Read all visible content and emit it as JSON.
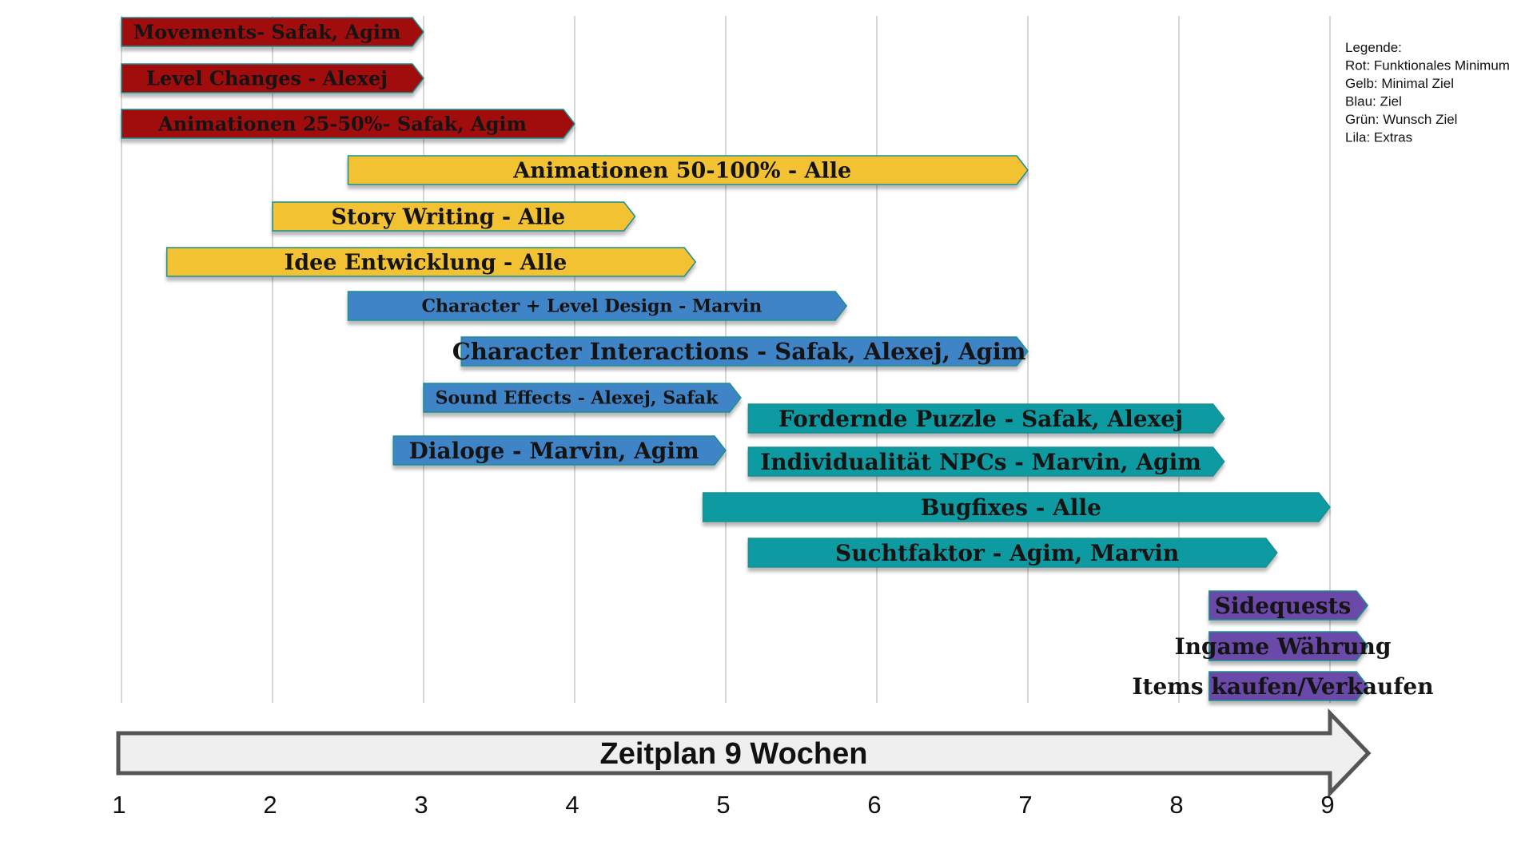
{
  "chart_data": {
    "type": "gantt",
    "x_axis_title": "Zeitplan 9 Wochen",
    "x_ticks": [
      "1",
      "2",
      "3",
      "4",
      "5",
      "6",
      "7",
      "8",
      "9"
    ],
    "xlim": [
      1,
      9.25
    ],
    "legend": {
      "title": "Legende:",
      "entries": [
        "Rot: Funktionales Minimum",
        "Gelb: Minimal Ziel",
        "Blau: Ziel",
        "Grün: Wunsch Ziel",
        "Lila: Extras"
      ]
    },
    "colors": {
      "red": "#a10d10",
      "yellow": "#f2c232",
      "blue": "#3f84c8",
      "teal": "#079aa0",
      "purple": "#6a4aa8"
    },
    "tasks": [
      {
        "label": "Movements- Safak, Agim",
        "start": 1.0,
        "end": 3.0,
        "category": "red"
      },
      {
        "label": "Level Changes - Alexej",
        "start": 1.0,
        "end": 3.0,
        "category": "red"
      },
      {
        "label": "Animationen 25-50%- Safak, Agim",
        "start": 1.0,
        "end": 4.0,
        "category": "red"
      },
      {
        "label": "Animationen 50-100% - Alle",
        "start": 2.5,
        "end": 7.0,
        "category": "yellow"
      },
      {
        "label": "Story Writing - Alle",
        "start": 2.0,
        "end": 4.4,
        "category": "yellow"
      },
      {
        "label": "Idee Entwicklung - Alle",
        "start": 1.3,
        "end": 4.8,
        "category": "yellow"
      },
      {
        "label": "Character + Level Design - Marvin",
        "start": 2.5,
        "end": 5.8,
        "category": "blue"
      },
      {
        "label": "Character Interactions - Safak, Alexej, Agim",
        "start": 3.25,
        "end": 7.0,
        "category": "blue"
      },
      {
        "label": "Sound Effects - Alexej, Safak",
        "start": 3.0,
        "end": 5.1,
        "category": "blue"
      },
      {
        "label": "Fordernde Puzzle - Safak, Alexej",
        "start": 5.15,
        "end": 8.3,
        "category": "teal"
      },
      {
        "label": "Dialoge - Marvin, Agim",
        "start": 2.8,
        "end": 5.0,
        "category": "blue"
      },
      {
        "label": "Individualität NPCs - Marvin, Agim",
        "start": 5.15,
        "end": 8.3,
        "category": "teal"
      },
      {
        "label": "Bugfixes - Alle",
        "start": 4.85,
        "end": 9.0,
        "category": "teal"
      },
      {
        "label": "Suchtfaktor - Agim, Marvin",
        "start": 5.15,
        "end": 8.65,
        "category": "teal"
      },
      {
        "label": "Sidequests",
        "start": 8.2,
        "end": 9.25,
        "category": "purple"
      },
      {
        "label": "Ingame Währung",
        "start": 8.2,
        "end": 9.25,
        "category": "purple"
      },
      {
        "label": "Items kaufen/Verkaufen",
        "start": 8.2,
        "end": 9.25,
        "category": "purple"
      }
    ]
  }
}
